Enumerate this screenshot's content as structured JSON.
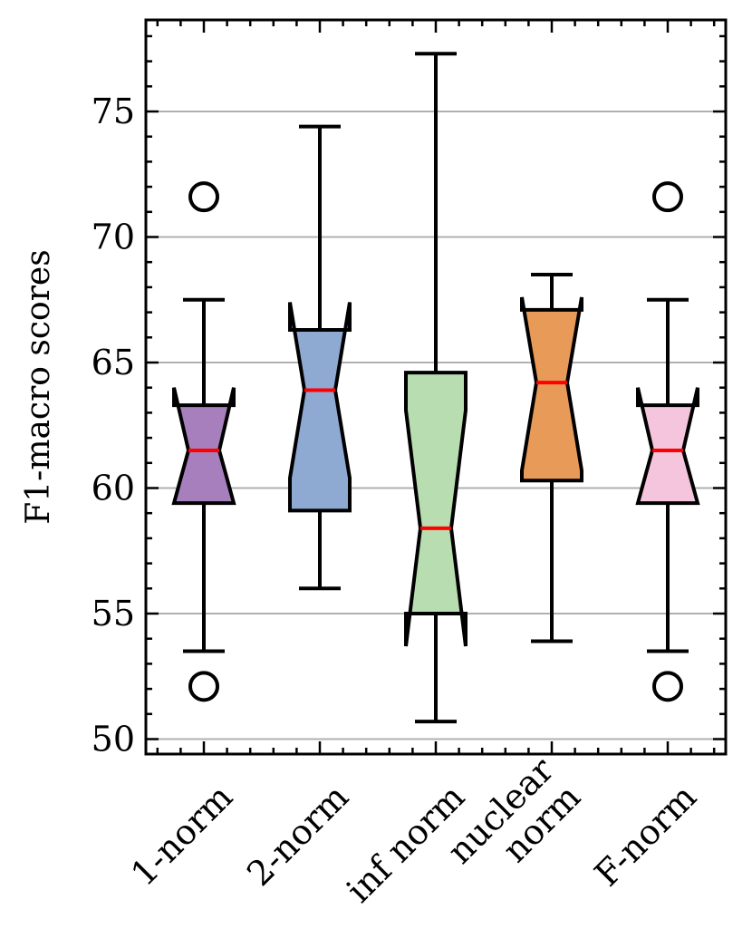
{
  "chart_data": {
    "type": "boxplot",
    "title": "",
    "xlabel": "",
    "ylabel": "F1-macro scores",
    "ylim": [
      49.5,
      78.5
    ],
    "yticks": [
      50,
      55,
      60,
      65,
      70,
      75
    ],
    "grid": "y",
    "notched": true,
    "median_color": "#ff0000",
    "categories": [
      "1-norm",
      "2-norm",
      "inf norm",
      "nuclear norm",
      "F-norm"
    ],
    "category_lines": [
      [
        "1-norm"
      ],
      [
        "2-norm"
      ],
      [
        "inf norm"
      ],
      [
        "nuclear",
        "norm"
      ],
      [
        "F-norm"
      ]
    ],
    "boxes": [
      {
        "name": "1-norm",
        "whislo": 53.5,
        "q1": 59.4,
        "med": 61.5,
        "q3": 63.3,
        "whishi": 67.5,
        "notch_lo": 59.4,
        "notch_hi": 64.0,
        "fliers": [
          71.6,
          52.1
        ],
        "color": "#a77fbd"
      },
      {
        "name": "2-norm",
        "whislo": 56.0,
        "q1": 59.1,
        "med": 63.9,
        "q3": 66.3,
        "whishi": 74.4,
        "notch_lo": 60.4,
        "notch_hi": 67.4,
        "fliers": [],
        "color": "#8ea9d2"
      },
      {
        "name": "inf norm",
        "whislo": 50.7,
        "q1": 55.0,
        "med": 58.4,
        "q3": 64.6,
        "whishi": 77.3,
        "notch_lo": 53.7,
        "notch_hi": 63.1,
        "fliers": [],
        "color": "#b7ddb1"
      },
      {
        "name": "nuclear norm",
        "whislo": 53.9,
        "q1": 60.3,
        "med": 64.2,
        "q3": 67.1,
        "whishi": 68.5,
        "notch_lo": 60.7,
        "notch_hi": 67.6,
        "fliers": [],
        "color": "#e89b58"
      },
      {
        "name": "F-norm",
        "whislo": 53.5,
        "q1": 59.4,
        "med": 61.5,
        "q3": 63.3,
        "whishi": 67.5,
        "notch_lo": 59.4,
        "notch_hi": 64.0,
        "fliers": [
          71.6,
          52.1
        ],
        "color": "#f5c5de"
      }
    ]
  }
}
